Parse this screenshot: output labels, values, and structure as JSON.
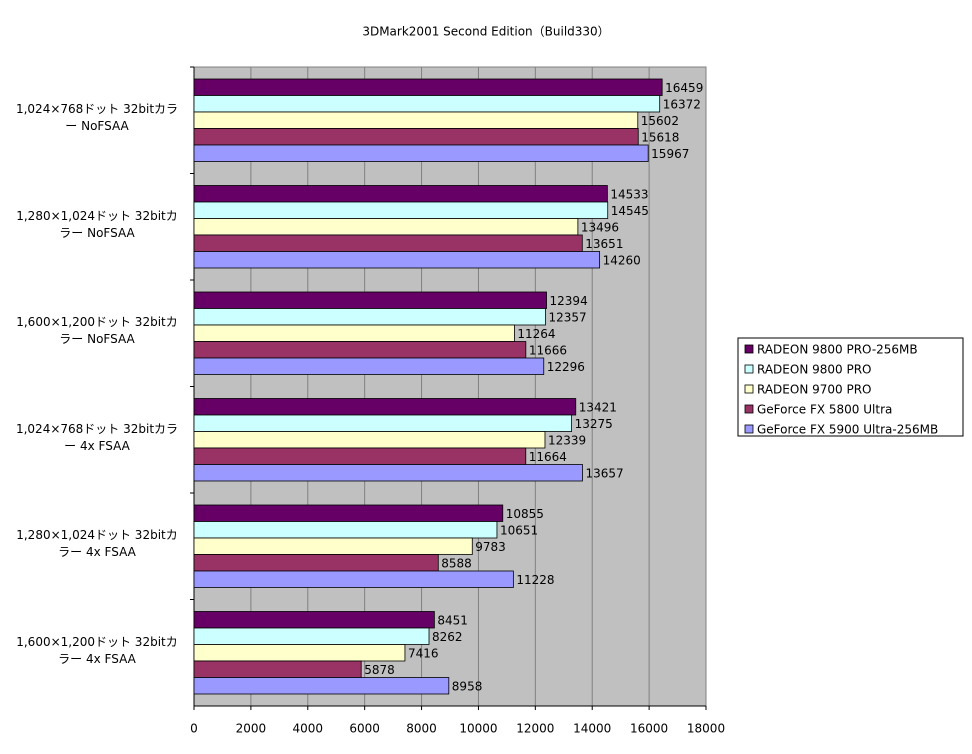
{
  "chart_data": {
    "type": "hbar",
    "title": "3DMark2001 Second Edition（Build330）",
    "categories": [
      "1,024×768ドット 32bitカラー NoFSAA",
      "1,280×1,024ドット 32bitカラー NoFSAA",
      "1,600×1,200ドット 32bitカラー NoFSAA",
      "1,024×768ドット 32bitカラー 4x FSAA",
      "1,280×1,024ドット 32bitカラー 4x FSAA",
      "1,600×1,200ドット 32bitカラー 4x FSAA"
    ],
    "series": [
      {
        "name": "RADEON 9800 PRO-256MB",
        "color": "#660066",
        "values": [
          16459,
          14533,
          12394,
          13421,
          10855,
          8451
        ]
      },
      {
        "name": "RADEON 9800 PRO",
        "color": "#ccffff",
        "values": [
          16372,
          14545,
          12357,
          13275,
          10651,
          8262
        ]
      },
      {
        "name": "RADEON 9700 PRO",
        "color": "#ffffcc",
        "values": [
          15602,
          13496,
          11264,
          12339,
          9783,
          7416
        ]
      },
      {
        "name": "GeForce FX 5800 Ultra",
        "color": "#993366",
        "values": [
          15618,
          13651,
          11666,
          11664,
          8588,
          5878
        ]
      },
      {
        "name": "GeForce FX 5900 Ultra-256MB",
        "color": "#9999ff",
        "values": [
          15967,
          14260,
          12296,
          13657,
          11228,
          8958
        ]
      }
    ],
    "xlim": [
      0,
      18000
    ],
    "xticks": [
      0,
      2000,
      4000,
      6000,
      8000,
      10000,
      12000,
      14000,
      16000,
      18000
    ],
    "grid": true,
    "legend": "right",
    "plot_background": "#c0c0c0"
  }
}
